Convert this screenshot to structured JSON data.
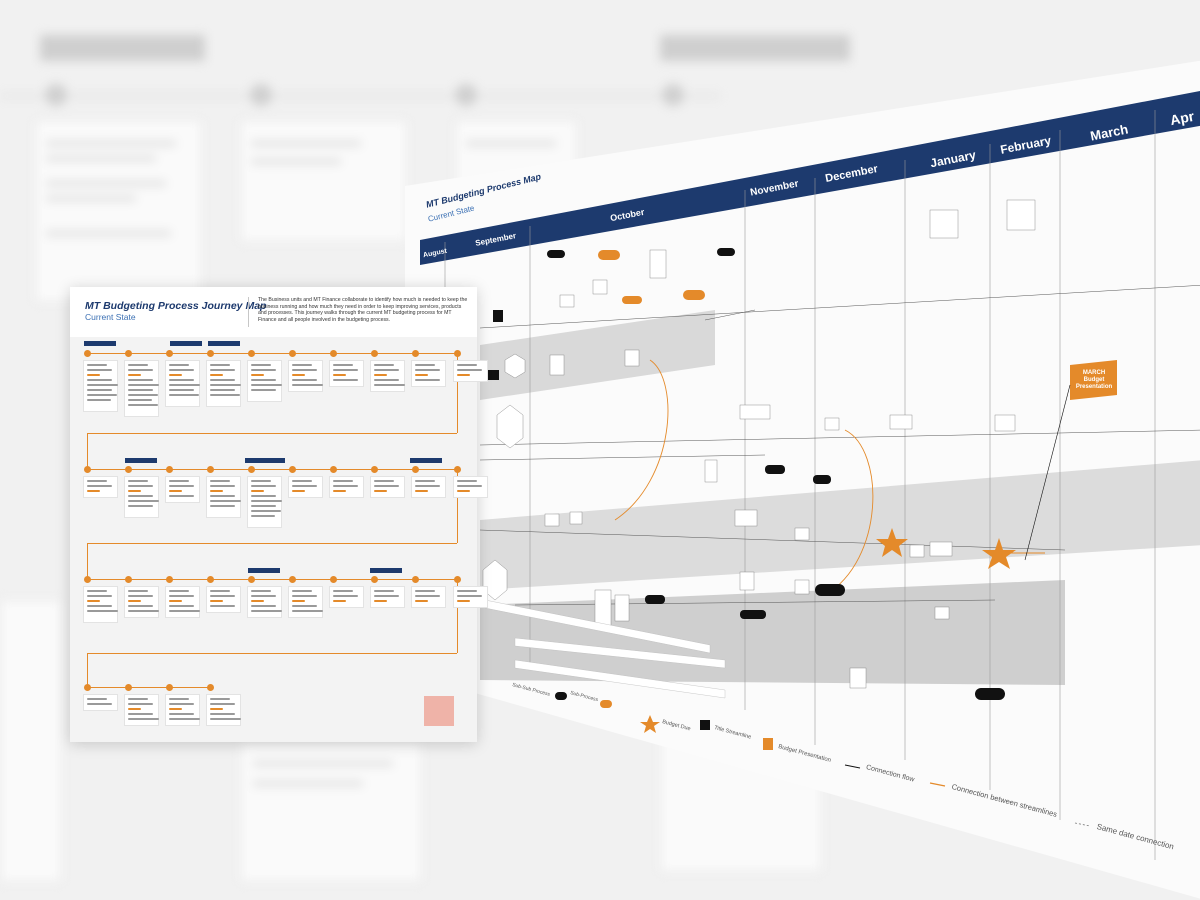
{
  "journey_map": {
    "title": "MT Budgeting Process Journey Map",
    "subtitle": "Current State",
    "description": "The Business units and MT Finance collaborate to identify how much is needed to keep the business running and how much they need in order to keep improving services, products and processes. This journey walks through the current MT budgeting process for MT Finance and all people involved in the budgeting process."
  },
  "process_map": {
    "title": "MT Budgeting Process Map",
    "subtitle": "Current State",
    "months": [
      "August",
      "September",
      "October",
      "November",
      "December",
      "January",
      "February",
      "March",
      "Apr"
    ],
    "milestone": {
      "line1": "MARCH",
      "line2": "Budget",
      "line3": "Presentation"
    },
    "legend": [
      {
        "label": "Sub-Sub Process",
        "icon": "black-pill-icon"
      },
      {
        "label": "Sub-Process",
        "icon": "orange-pill-icon"
      },
      {
        "label": "Budget Due",
        "icon": "orange-star-icon"
      },
      {
        "label": "Title Streamline",
        "icon": "black-square-icon"
      },
      {
        "label": "Budget Presentation",
        "icon": "orange-square-icon"
      },
      {
        "label": "Connection flow",
        "icon": "black-arrow-icon"
      },
      {
        "label": "Connection between streamlines",
        "icon": "orange-arrow-icon"
      },
      {
        "label": "Same date connection",
        "icon": "dashed-line-icon"
      }
    ]
  },
  "colors": {
    "navy": "#1d3a6e",
    "orange": "#e48a2a",
    "black": "#111111"
  }
}
